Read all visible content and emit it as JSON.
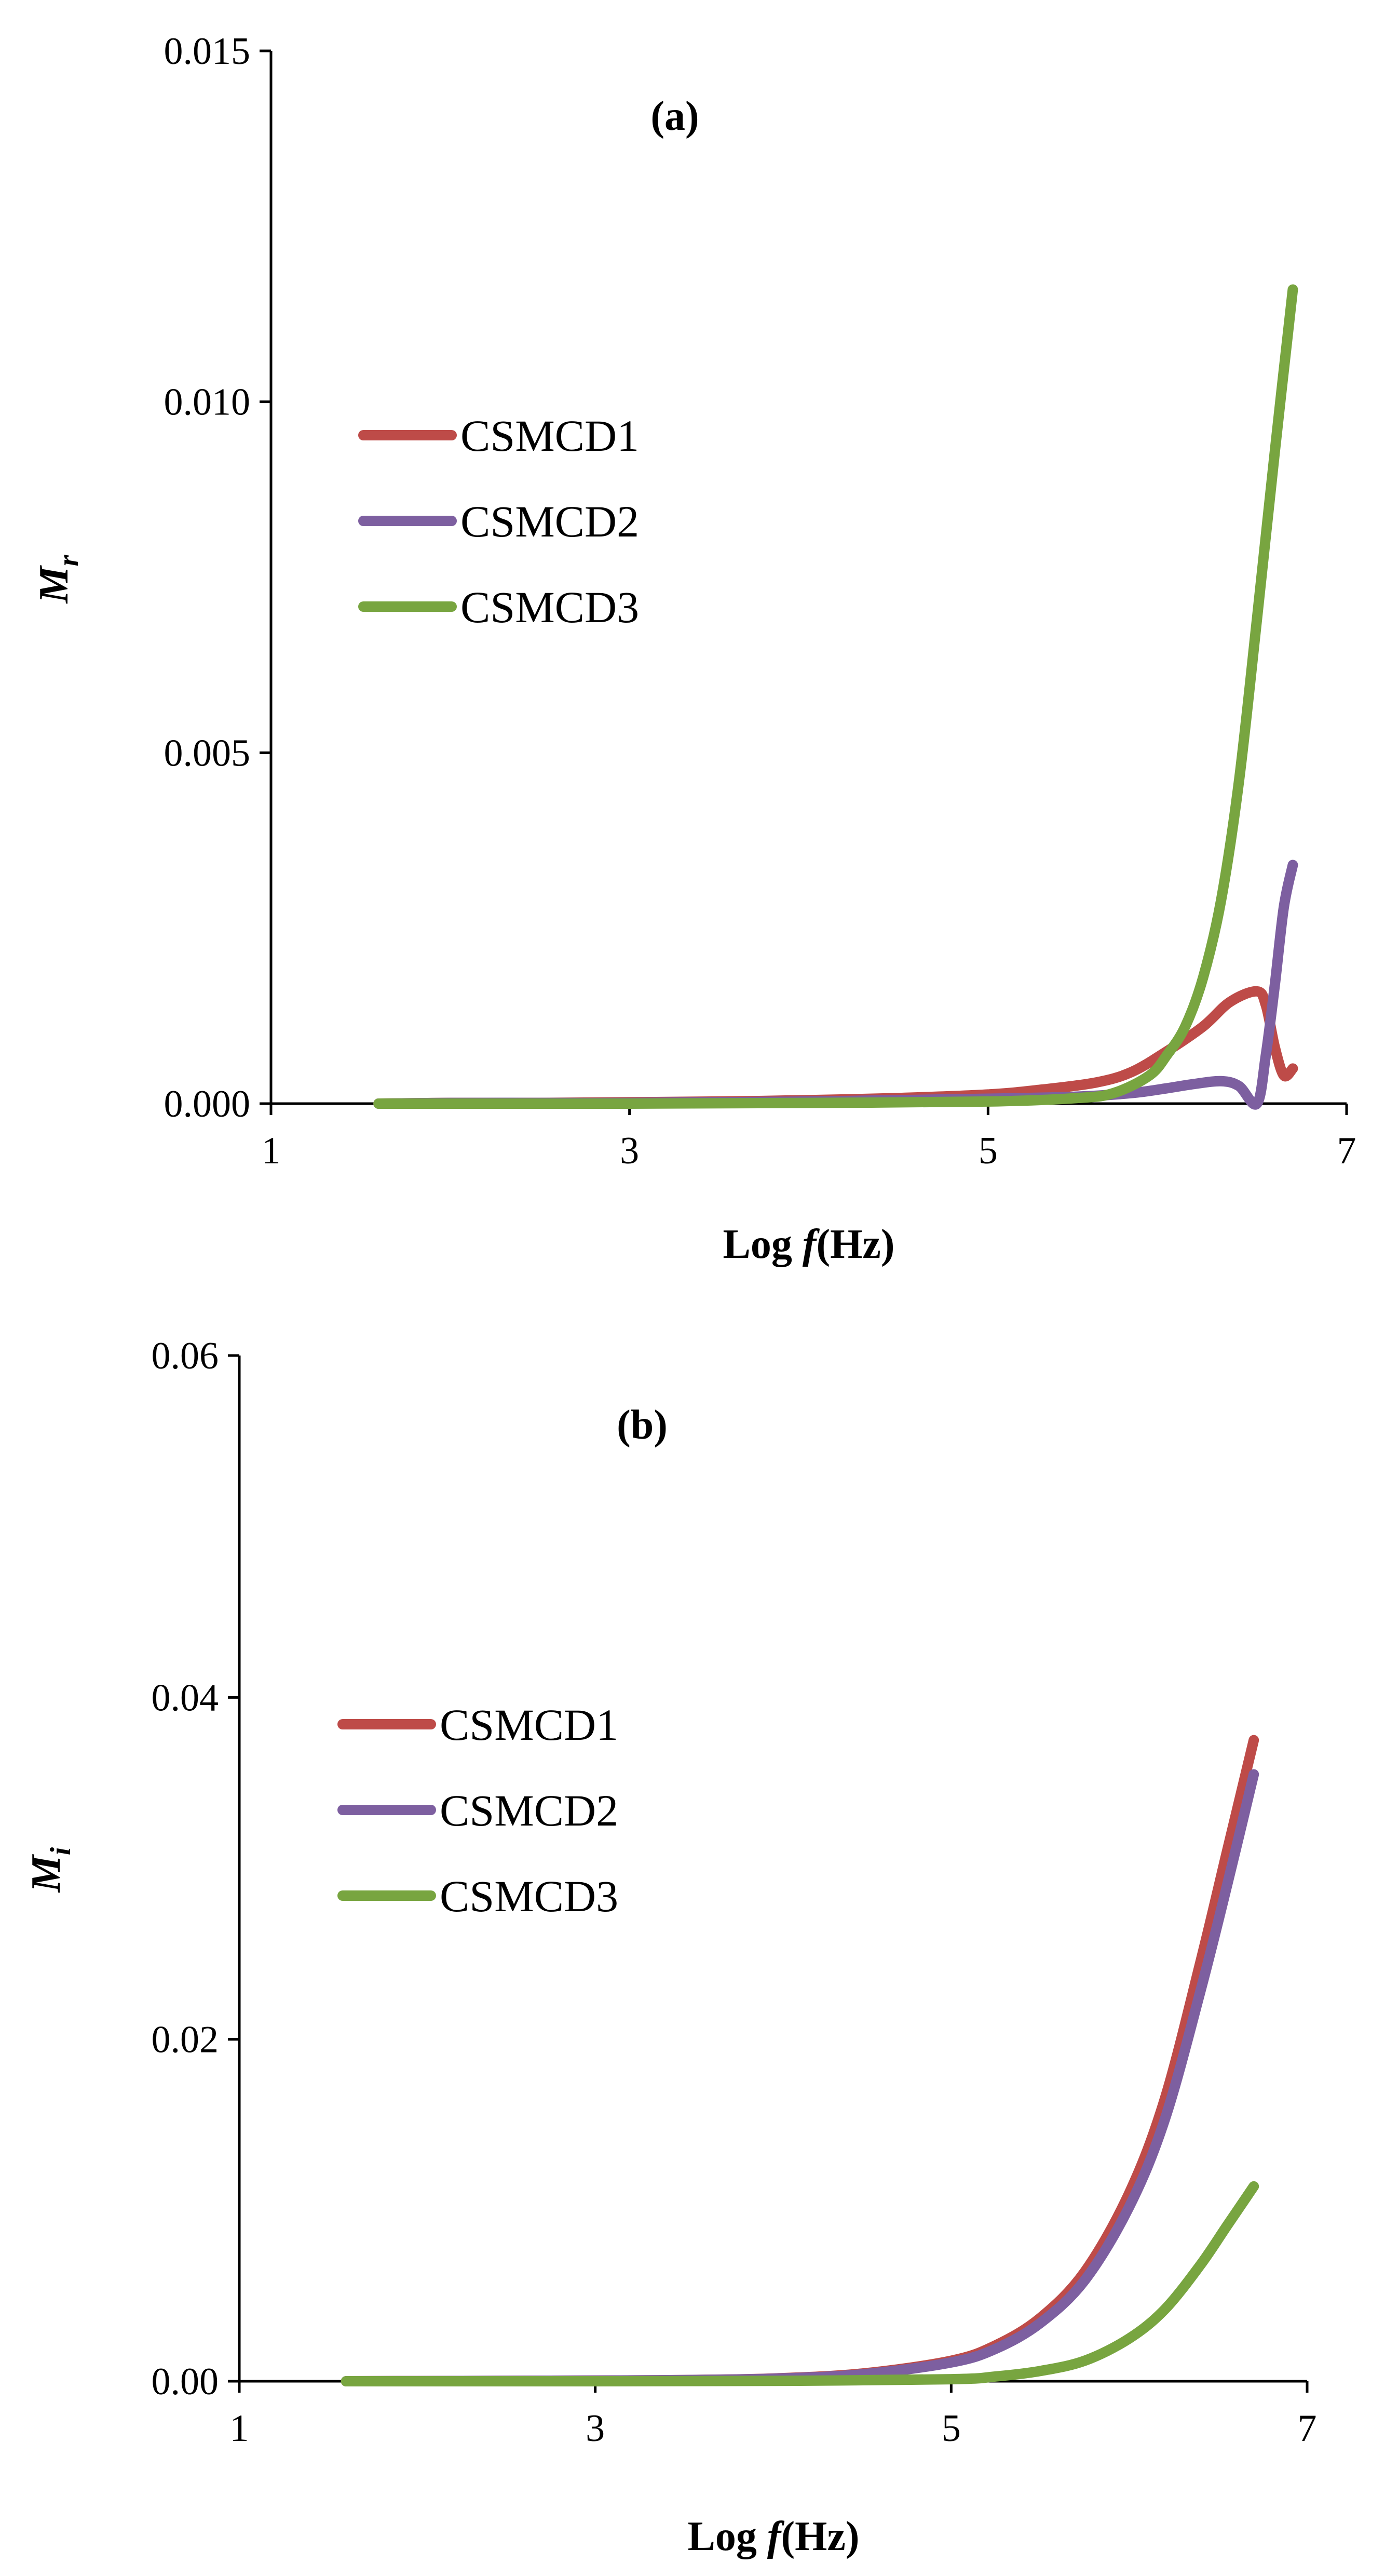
{
  "chart_data": [
    {
      "id": "a",
      "type": "line",
      "panel_label": "(a)",
      "xlabel": "(Hz)",
      "xlabel_prefix": "Log ",
      "xlabel_var": "f",
      "ylabel": "M",
      "ylabel_sub": "r",
      "xlim": [
        1,
        7
      ],
      "ylim": [
        0,
        0.015
      ],
      "xticks": [
        1,
        3,
        5,
        7
      ],
      "xtick_labels": [
        "1",
        "3",
        "5",
        "7"
      ],
      "yticks": [
        0,
        0.005,
        0.01,
        0.015
      ],
      "ytick_labels": [
        "0.000",
        "0.005",
        "0.010",
        "0.015"
      ],
      "legend_position": "center-left",
      "series": [
        {
          "name": "CSMCD1",
          "color": "#be4b48",
          "x": [
            1.6,
            2,
            2.5,
            3,
            3.5,
            4,
            4.5,
            5,
            5.3,
            5.6,
            5.8,
            6.0,
            6.2,
            6.35,
            6.5,
            6.55,
            6.6,
            6.65,
            6.7
          ],
          "y": [
            0.0,
            1e-05,
            1e-05,
            2e-05,
            3e-05,
            5e-05,
            8e-05,
            0.00013,
            0.0002,
            0.0003,
            0.00045,
            0.00075,
            0.0011,
            0.00145,
            0.0016,
            0.0014,
            0.0008,
            0.0004,
            0.0005
          ]
        },
        {
          "name": "CSMCD2",
          "color": "#7d5fa0",
          "x": [
            1.6,
            2,
            2.5,
            3,
            3.5,
            4,
            4.5,
            5,
            5.5,
            5.8,
            6.0,
            6.15,
            6.3,
            6.4,
            6.5,
            6.55,
            6.6,
            6.65,
            6.7
          ],
          "y": [
            0.0,
            1e-05,
            1e-05,
            1e-05,
            2e-05,
            3e-05,
            5e-05,
            7e-05,
            0.0001,
            0.00015,
            0.00022,
            0.00028,
            0.00032,
            0.00025,
            0.0,
            0.0007,
            0.0017,
            0.0028,
            0.0034
          ]
        },
        {
          "name": "CSMCD3",
          "color": "#78a540",
          "x": [
            1.6,
            2,
            3,
            4,
            5,
            5.5,
            5.7,
            5.9,
            6.0,
            6.1,
            6.2,
            6.3,
            6.4,
            6.5,
            6.6,
            6.7
          ],
          "y": [
            0.0,
            0.0,
            0.0,
            1e-05,
            3e-05,
            8e-05,
            0.00015,
            0.0004,
            0.0007,
            0.0011,
            0.0018,
            0.0029,
            0.0046,
            0.0069,
            0.0093,
            0.0116
          ]
        }
      ]
    },
    {
      "id": "b",
      "type": "line",
      "panel_label": "(b)",
      "xlabel": "(Hz)",
      "xlabel_prefix": "Log ",
      "xlabel_var": "f",
      "ylabel": "M",
      "ylabel_sub": "i",
      "xlim": [
        1,
        7
      ],
      "ylim": [
        0,
        0.06
      ],
      "xticks": [
        1,
        3,
        5,
        7
      ],
      "xtick_labels": [
        "1",
        "3",
        "5",
        "7"
      ],
      "yticks": [
        0,
        0.02,
        0.04,
        0.06
      ],
      "ytick_labels": [
        "0.00",
        "0.02",
        "0.04",
        "0.06"
      ],
      "legend_position": "center-left",
      "series": [
        {
          "name": "CSMCD1",
          "color": "#be4b48",
          "x": [
            1.6,
            2,
            3,
            3.5,
            4,
            4.5,
            5,
            5.25,
            5.5,
            5.75,
            6,
            6.2,
            6.4,
            6.55,
            6.7
          ],
          "y": [
            0.0,
            1e-05,
            4e-05,
            7e-05,
            0.00016,
            0.00045,
            0.0012,
            0.0021,
            0.0037,
            0.0064,
            0.011,
            0.0165,
            0.0245,
            0.031,
            0.0375
          ]
        },
        {
          "name": "CSMCD2",
          "color": "#7d5fa0",
          "x": [
            1.6,
            2,
            3,
            3.5,
            4,
            4.5,
            5,
            5.25,
            5.5,
            5.75,
            6,
            6.2,
            6.4,
            6.55,
            6.7
          ],
          "y": [
            0.0,
            1e-05,
            4e-05,
            7e-05,
            0.00015,
            0.0004,
            0.0011,
            0.0019,
            0.0034,
            0.0059,
            0.0102,
            0.0153,
            0.0228,
            0.029,
            0.0355
          ]
        },
        {
          "name": "CSMCD3",
          "color": "#78a540",
          "x": [
            1.6,
            2,
            3,
            4,
            5,
            5.25,
            5.5,
            5.75,
            6,
            6.2,
            6.4,
            6.55,
            6.7
          ],
          "y": [
            0.0,
            0.0,
            0.0,
            2e-05,
            0.00012,
            0.00028,
            0.0006,
            0.0012,
            0.0025,
            0.0042,
            0.0068,
            0.0091,
            0.0114
          ]
        }
      ]
    }
  ]
}
